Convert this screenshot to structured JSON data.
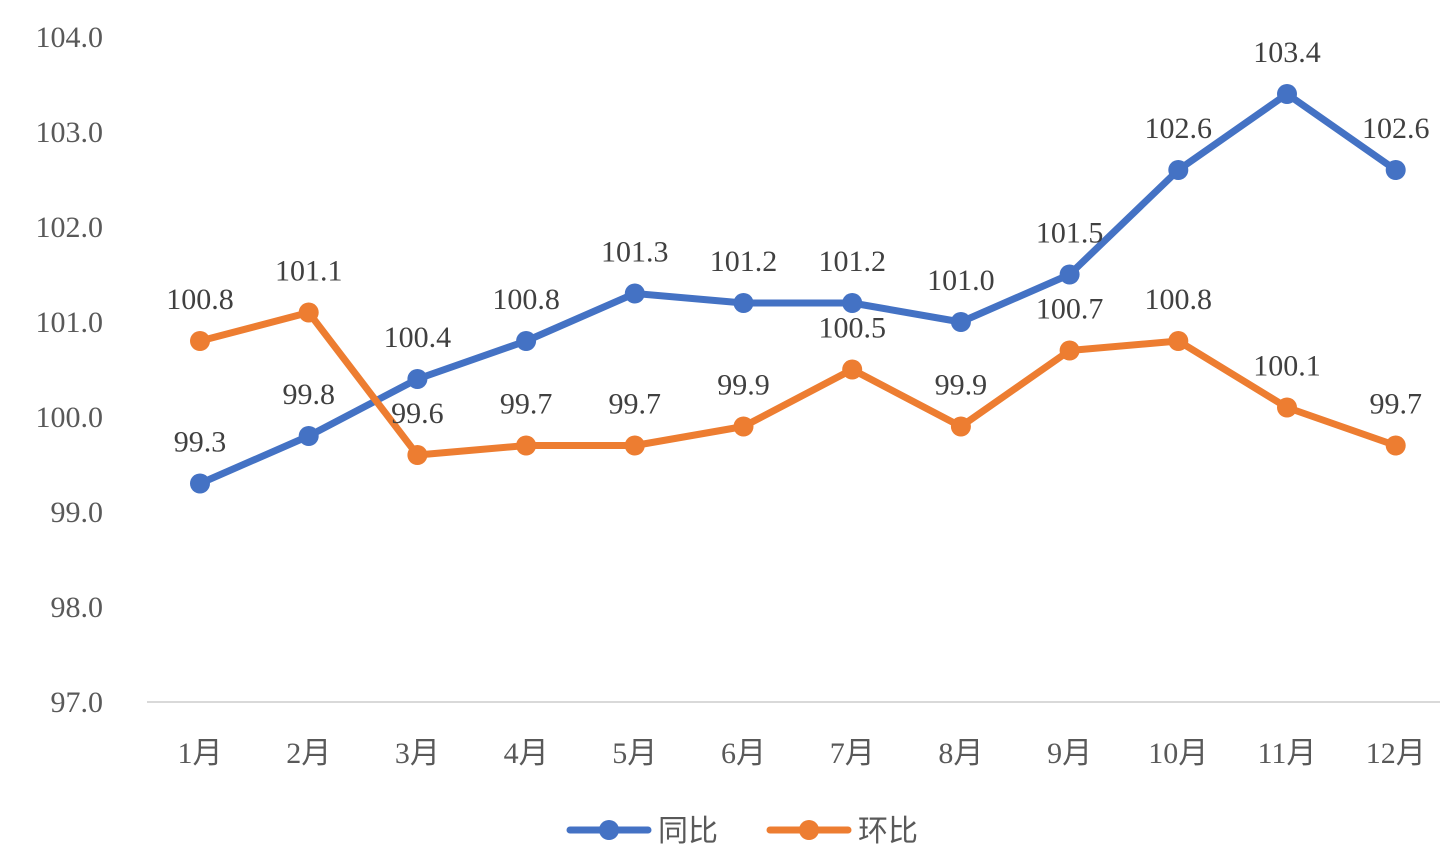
{
  "chart_data": {
    "type": "line",
    "title": "",
    "xlabel": "",
    "ylabel": "",
    "categories": [
      "1月",
      "2月",
      "3月",
      "4月",
      "5月",
      "6月",
      "7月",
      "8月",
      "9月",
      "10月",
      "11月",
      "12月"
    ],
    "ylim": [
      97.0,
      104.0
    ],
    "yticks": [
      "97.0",
      "98.0",
      "99.0",
      "100.0",
      "101.0",
      "102.0",
      "103.0",
      "104.0"
    ],
    "grid": false,
    "legend_position": "bottom",
    "series": [
      {
        "name": "同比",
        "color": "#4472C4",
        "values": [
          99.3,
          99.8,
          100.4,
          100.8,
          101.3,
          101.2,
          101.2,
          101.0,
          101.5,
          102.6,
          103.4,
          102.6
        ],
        "labels": [
          "99.3",
          "99.8",
          "100.4",
          "100.8",
          "101.3",
          "101.2",
          "101.2",
          "101.0",
          "101.5",
          "102.6",
          "103.4",
          "102.6"
        ]
      },
      {
        "name": "环比",
        "color": "#ED7D31",
        "values": [
          100.8,
          101.1,
          99.6,
          99.7,
          99.7,
          99.9,
          100.5,
          99.9,
          100.7,
          100.8,
          100.1,
          99.7
        ],
        "labels": [
          "100.8",
          "101.1",
          "99.6",
          "99.7",
          "99.7",
          "99.9",
          "100.5",
          "99.9",
          "100.7",
          "100.8",
          "100.1",
          "99.7"
        ]
      }
    ]
  }
}
